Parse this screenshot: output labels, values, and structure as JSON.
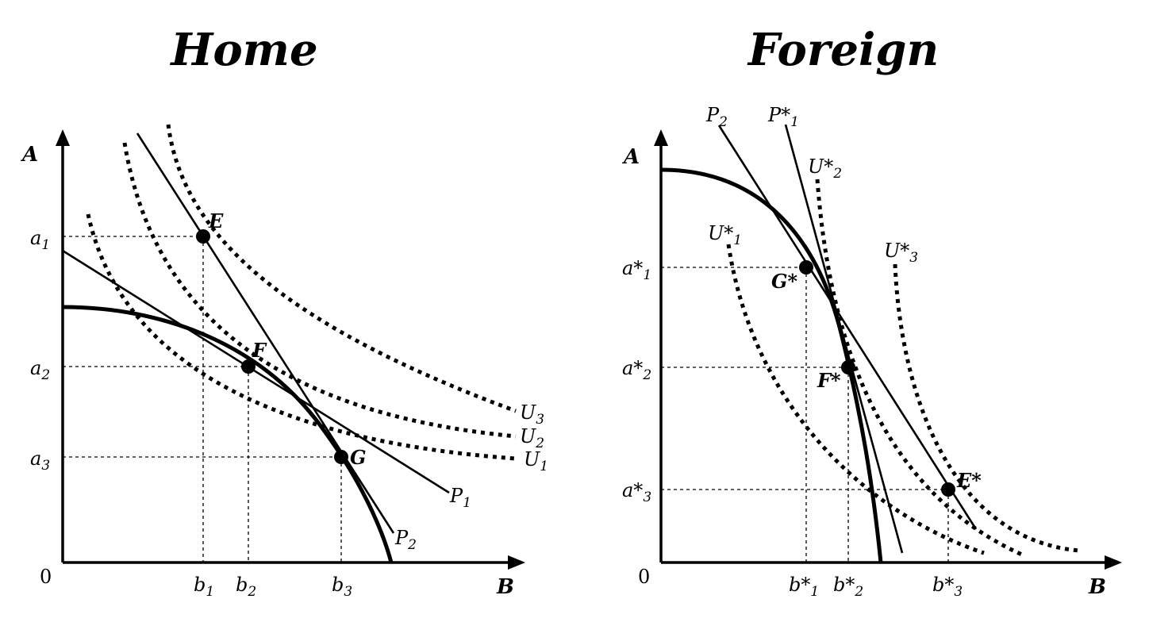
{
  "panels": {
    "home": {
      "title": "Home",
      "axis_y": "A",
      "axis_x": "B",
      "origin": "0",
      "y_ticks": [
        {
          "base": "a",
          "sub": "1"
        },
        {
          "base": "a",
          "sub": "2"
        },
        {
          "base": "a",
          "sub": "3"
        }
      ],
      "x_ticks": [
        {
          "base": "b",
          "sub": "1"
        },
        {
          "base": "b",
          "sub": "2"
        },
        {
          "base": "b",
          "sub": "3"
        }
      ],
      "points": [
        "E",
        "F",
        "G"
      ],
      "price_labels": [
        {
          "base": "P",
          "sub": "1"
        },
        {
          "base": "P",
          "sub": "2"
        }
      ],
      "utility_labels": [
        {
          "base": "U",
          "sub": "3"
        },
        {
          "base": "U",
          "sub": "2"
        },
        {
          "base": "U",
          "sub": "1"
        }
      ]
    },
    "foreign": {
      "title": "Foreign",
      "axis_y": "A",
      "axis_x": "B",
      "origin": "0",
      "y_ticks": [
        {
          "base": "a*",
          "sub": "1"
        },
        {
          "base": "a*",
          "sub": "2"
        },
        {
          "base": "a*",
          "sub": "3"
        }
      ],
      "x_ticks": [
        {
          "base": "b*",
          "sub": "1"
        },
        {
          "base": "b*",
          "sub": "2"
        },
        {
          "base": "b*",
          "sub": "3"
        }
      ],
      "points": [
        "G*",
        "F*",
        "E*"
      ],
      "price_labels": [
        {
          "base": "P",
          "sub": "2"
        },
        {
          "base": "P*",
          "sub": "1"
        }
      ],
      "utility_labels": [
        {
          "base": "U*",
          "sub": "2"
        },
        {
          "base": "U*",
          "sub": "1"
        },
        {
          "base": "U*",
          "sub": "3"
        }
      ]
    }
  }
}
